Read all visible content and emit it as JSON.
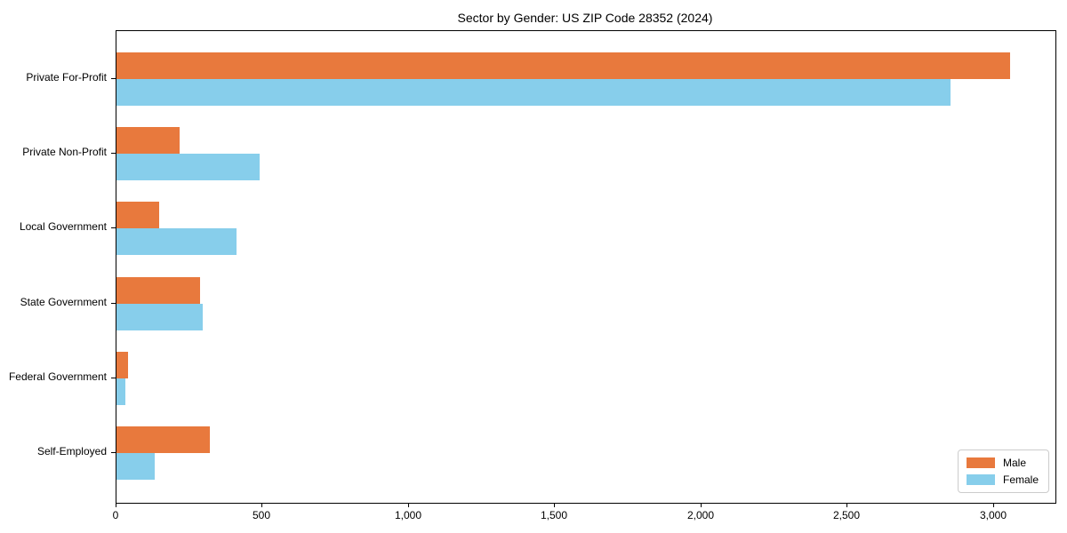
{
  "title": "Sector by Gender: US ZIP Code 28352 (2024)",
  "chart_data": {
    "type": "bar",
    "orientation": "horizontal",
    "title": "Sector by Gender: US ZIP Code 28352 (2024)",
    "xlabel": "",
    "ylabel": "",
    "categories": [
      "Private For-Profit",
      "Private Non-Profit",
      "Local Government",
      "State Government",
      "Federal Government",
      "Self-Employed"
    ],
    "series": [
      {
        "name": "Male",
        "color": "#e8793d",
        "values": [
          3055,
          215,
          145,
          285,
          40,
          320
        ]
      },
      {
        "name": "Female",
        "color": "#87ceeb",
        "values": [
          2850,
          490,
          410,
          295,
          30,
          130
        ]
      }
    ],
    "xlim": [
      0,
      3210
    ],
    "xticks": [
      0,
      500,
      1000,
      1500,
      2000,
      2500,
      3000
    ],
    "xtick_labels": [
      "0",
      "500",
      "1,000",
      "1,500",
      "2,000",
      "2,500",
      "3,000"
    ],
    "grid": false,
    "legend_position": "lower right",
    "legend": {
      "items": [
        {
          "label": "Male",
          "color": "#e8793d"
        },
        {
          "label": "Female",
          "color": "#87ceeb"
        }
      ]
    }
  }
}
